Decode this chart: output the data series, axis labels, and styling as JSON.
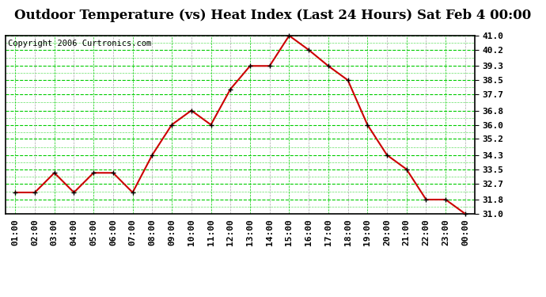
{
  "title": "Outdoor Temperature (vs) Heat Index (Last 24 Hours) Sat Feb 4 00:00",
  "copyright": "Copyright 2006 Curtronics.com",
  "x_labels": [
    "01:00",
    "02:00",
    "03:00",
    "04:00",
    "05:00",
    "06:00",
    "07:00",
    "08:00",
    "09:00",
    "10:00",
    "11:00",
    "12:00",
    "13:00",
    "14:00",
    "15:00",
    "16:00",
    "17:00",
    "18:00",
    "19:00",
    "20:00",
    "21:00",
    "22:00",
    "23:00",
    "00:00"
  ],
  "y_values": [
    32.2,
    32.2,
    33.3,
    32.2,
    33.3,
    33.3,
    32.2,
    34.3,
    36.0,
    36.8,
    36.0,
    38.0,
    39.3,
    39.3,
    41.0,
    40.2,
    39.3,
    38.5,
    36.0,
    34.3,
    33.5,
    31.8,
    31.8,
    31.0
  ],
  "line_color": "#cc0000",
  "marker_color": "#000000",
  "bg_color": "#ffffff",
  "plot_bg_color": "#ffffff",
  "grid_color_h": "#00cc00",
  "grid_color_v_gray": "#aaaaaa",
  "grid_color_v_green": "#00cc00",
  "y_ticks": [
    31.0,
    31.8,
    32.7,
    33.5,
    34.3,
    35.2,
    36.0,
    36.8,
    37.7,
    38.5,
    39.3,
    40.2,
    41.0
  ],
  "y_min": 31.0,
  "y_max": 41.0,
  "title_fontsize": 12,
  "tick_fontsize": 8,
  "copyright_fontsize": 7.5
}
